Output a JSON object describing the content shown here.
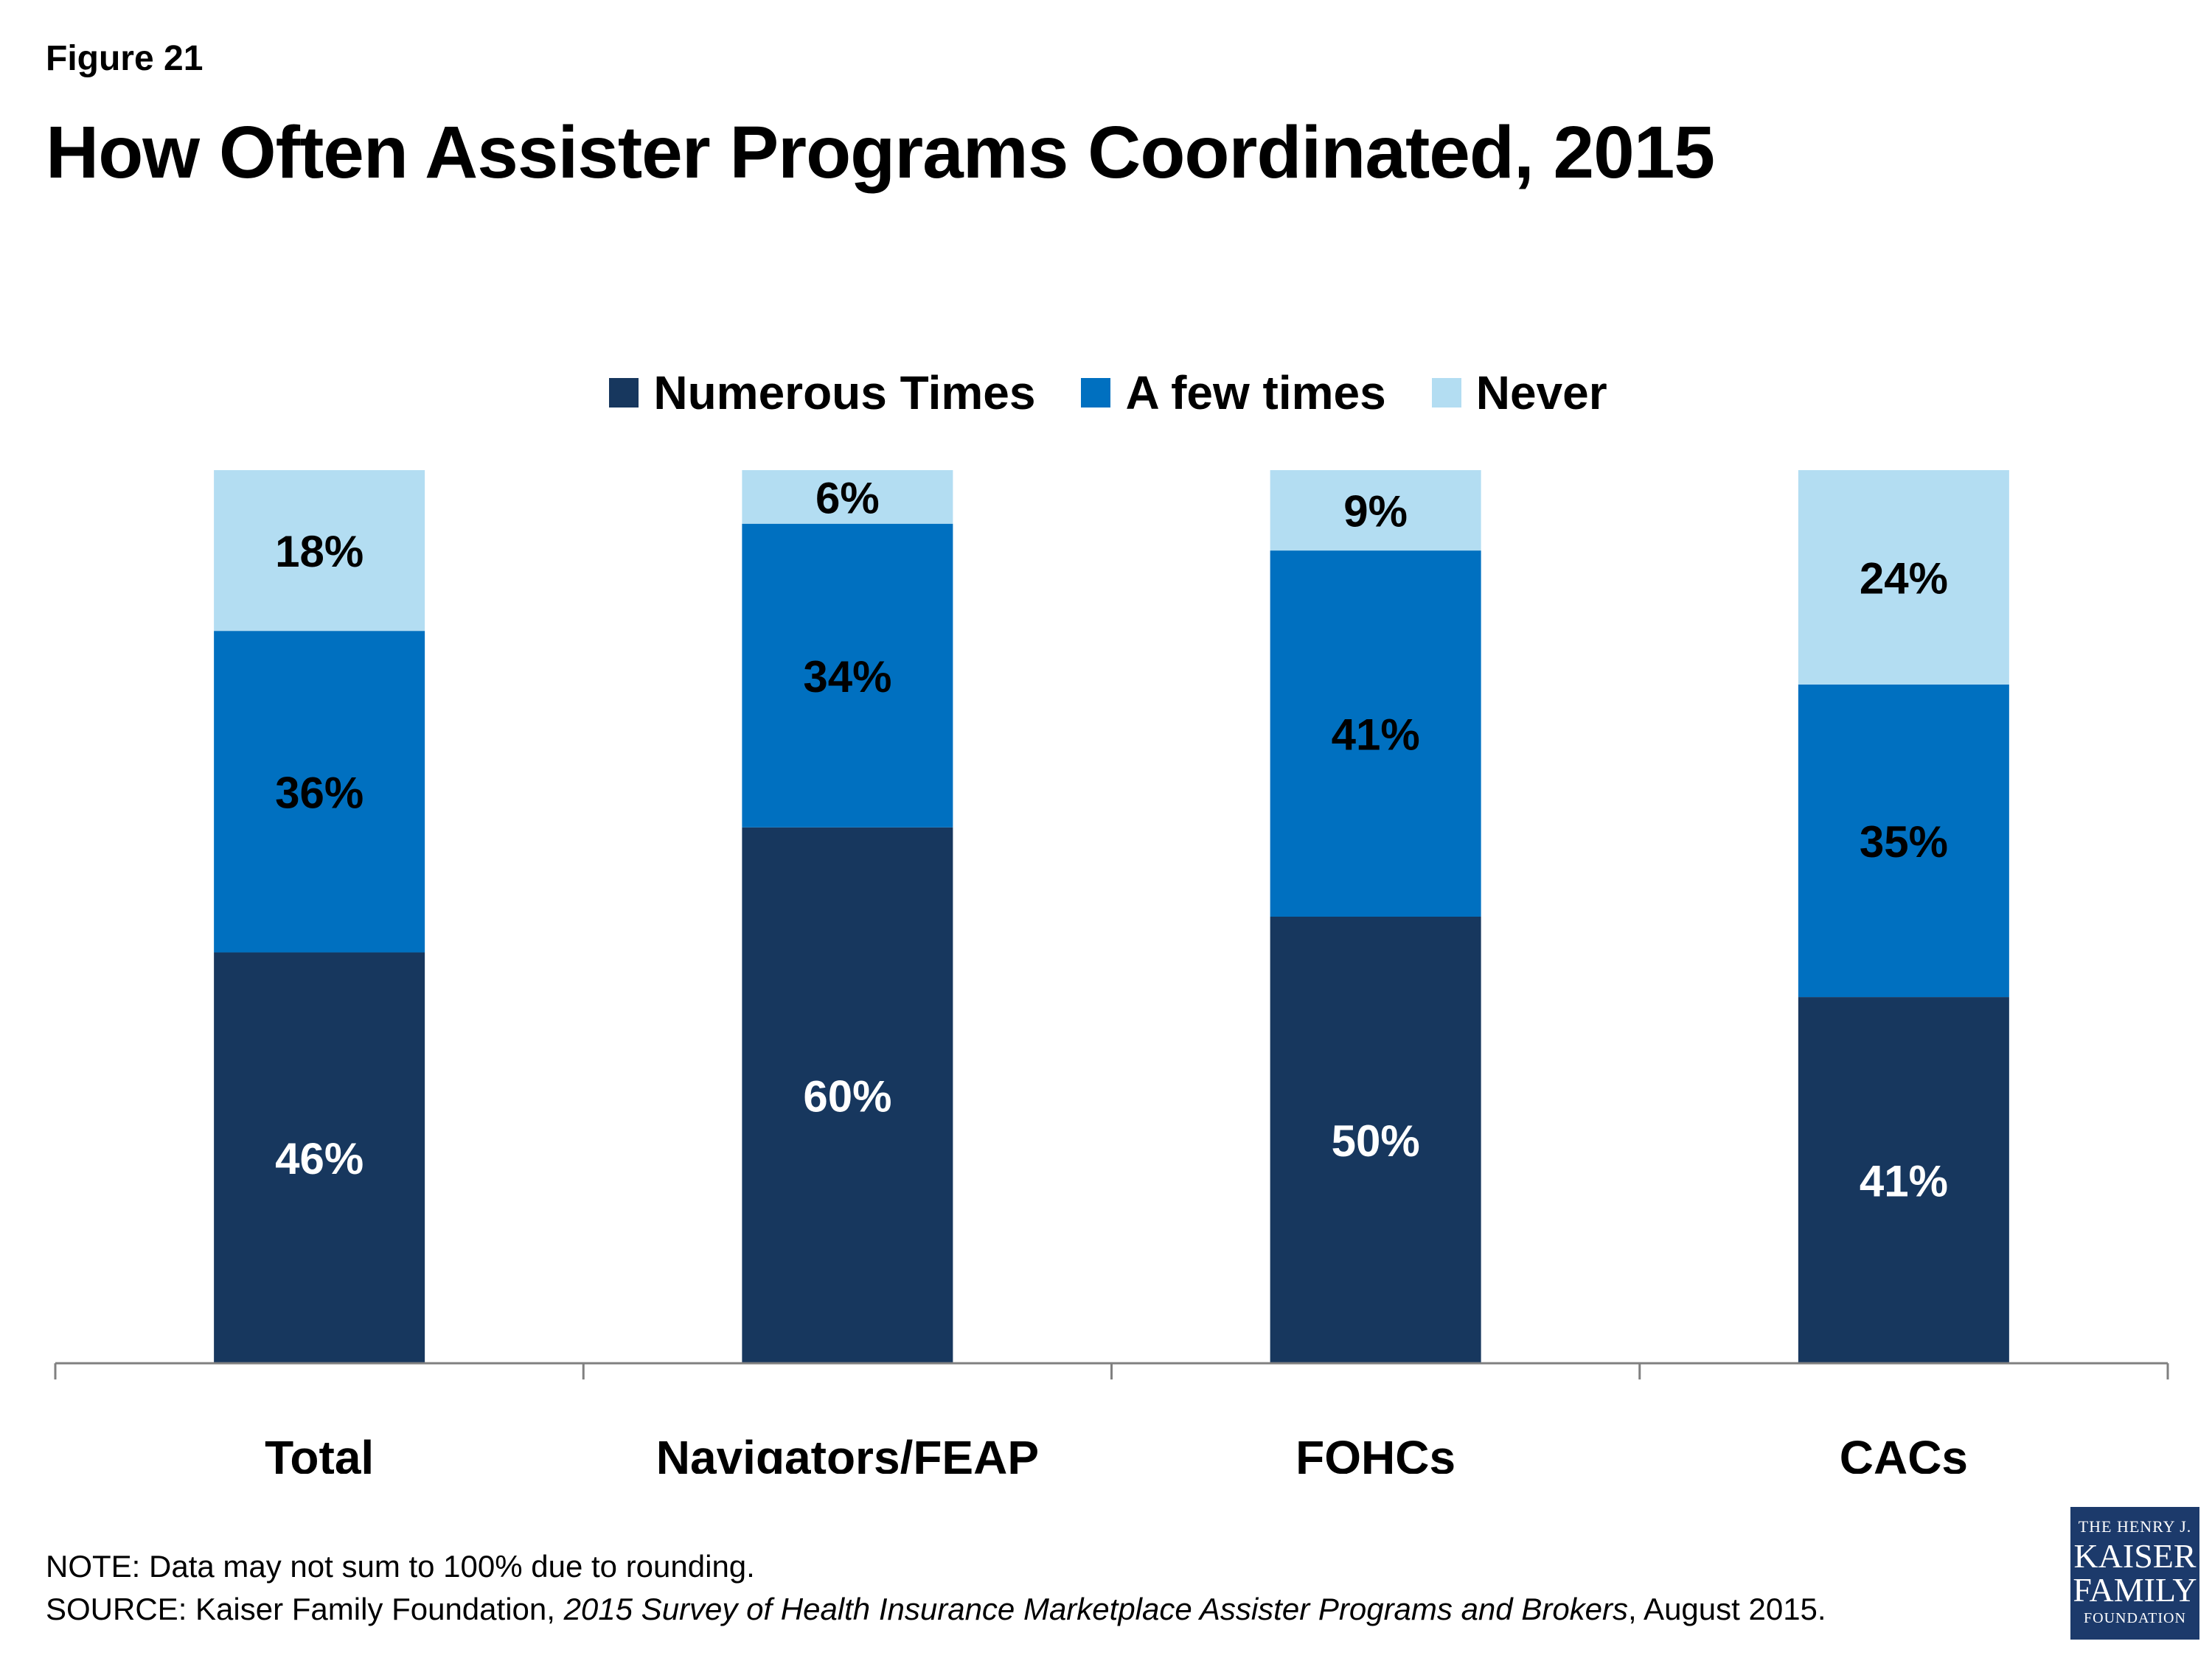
{
  "figure_label": "Figure 21",
  "colors": {
    "numerous": "#17375e",
    "few": "#0070c0",
    "never": "#b3ddf2"
  },
  "chart_data": {
    "type": "bar",
    "stacked": true,
    "title": "How Often Assister Programs Coordinated, 2015",
    "categories": [
      "Total",
      "Navigators/FEAP",
      "FQHCs",
      "CACs"
    ],
    "series": [
      {
        "name": "Numerous Times",
        "values": [
          46,
          60,
          50,
          41
        ],
        "labels": [
          "46%",
          "60%",
          "50%",
          "41%"
        ]
      },
      {
        "name": "A few times",
        "values": [
          36,
          34,
          41,
          35
        ],
        "labels": [
          "36%",
          "34%",
          "41%",
          "35%"
        ]
      },
      {
        "name": "Never",
        "values": [
          18,
          6,
          9,
          24
        ],
        "labels": [
          "18%",
          "6%",
          "9%",
          "24%"
        ]
      }
    ],
    "ylim": [
      0,
      100
    ],
    "legend": "top-center",
    "grid": false
  },
  "footer": {
    "note": "NOTE: Data may not sum to 100% due to rounding.",
    "source_prefix": "SOURCE: Kaiser Family Foundation, ",
    "source_italic": "2015 Survey of Health Insurance Marketplace Assister Programs and Brokers",
    "source_suffix": ", August 2015."
  },
  "logo": {
    "line1": "THE HENRY J.",
    "line2": "KAISER",
    "line3": "FAMILY",
    "line4": "FOUNDATION"
  }
}
